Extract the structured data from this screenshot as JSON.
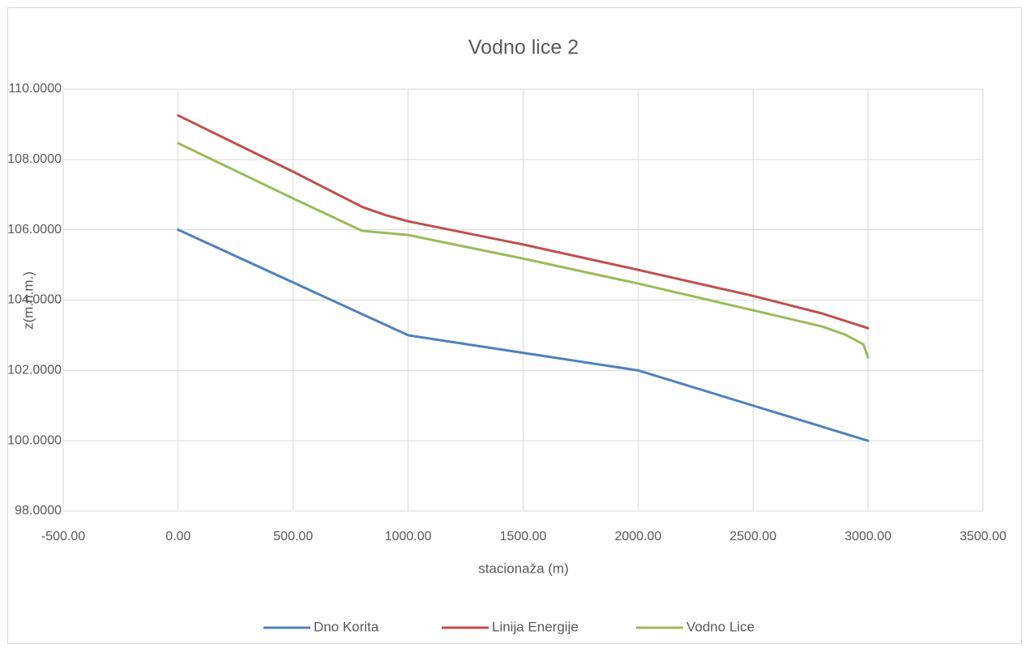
{
  "chart_data": {
    "type": "line",
    "title": "Vodno lice 2",
    "xlabel": "stacionaža (m)",
    "ylabel": "z(m.n.m.)",
    "xlim": [
      -500,
      3500
    ],
    "xticks": [
      {
        "value": -500,
        "label": "-500.00"
      },
      {
        "value": 0,
        "label": "0.00"
      },
      {
        "value": 500,
        "label": "500.00"
      },
      {
        "value": 1000,
        "label": "1000.00"
      },
      {
        "value": 1500,
        "label": "1500.00"
      },
      {
        "value": 2000,
        "label": "2000.00"
      },
      {
        "value": 2500,
        "label": "2500.00"
      },
      {
        "value": 3000,
        "label": "3000.00"
      },
      {
        "value": 3500,
        "label": "3500.00"
      }
    ],
    "ylim": [
      98,
      110
    ],
    "yticks": [
      {
        "value": 98,
        "label": "98.0000"
      },
      {
        "value": 100,
        "label": "100.0000"
      },
      {
        "value": 102,
        "label": "102.0000"
      },
      {
        "value": 104,
        "label": "104.0000"
      },
      {
        "value": 106,
        "label": "106.0000"
      },
      {
        "value": 108,
        "label": "108.0000"
      },
      {
        "value": 110,
        "label": "110.0000"
      }
    ],
    "grid": true,
    "legend": "bottom",
    "series": [
      {
        "name": "Dno Korita",
        "color": "#4f81bd",
        "x": [
          0,
          500,
          1000,
          1500,
          2000,
          2500,
          3000
        ],
        "values": [
          106,
          104.5,
          103,
          102.5,
          102,
          101,
          100
        ]
      },
      {
        "name": "Linija Energije",
        "color": "#c0504d",
        "x": [
          0,
          500,
          800,
          900,
          1000,
          1500,
          2000,
          2500,
          2800,
          3000
        ],
        "values": [
          109.25,
          107.65,
          106.65,
          106.42,
          106.24,
          105.58,
          104.86,
          104.12,
          103.62,
          103.2
        ]
      },
      {
        "name": "Vodno Lice",
        "color": "#9bbb59",
        "x": [
          0,
          500,
          800,
          1000,
          1500,
          2000,
          2500,
          2800,
          2900,
          2980,
          3000
        ],
        "values": [
          108.46,
          106.89,
          105.97,
          105.85,
          105.18,
          104.47,
          103.71,
          103.25,
          103.02,
          102.74,
          102.37
        ]
      }
    ]
  }
}
